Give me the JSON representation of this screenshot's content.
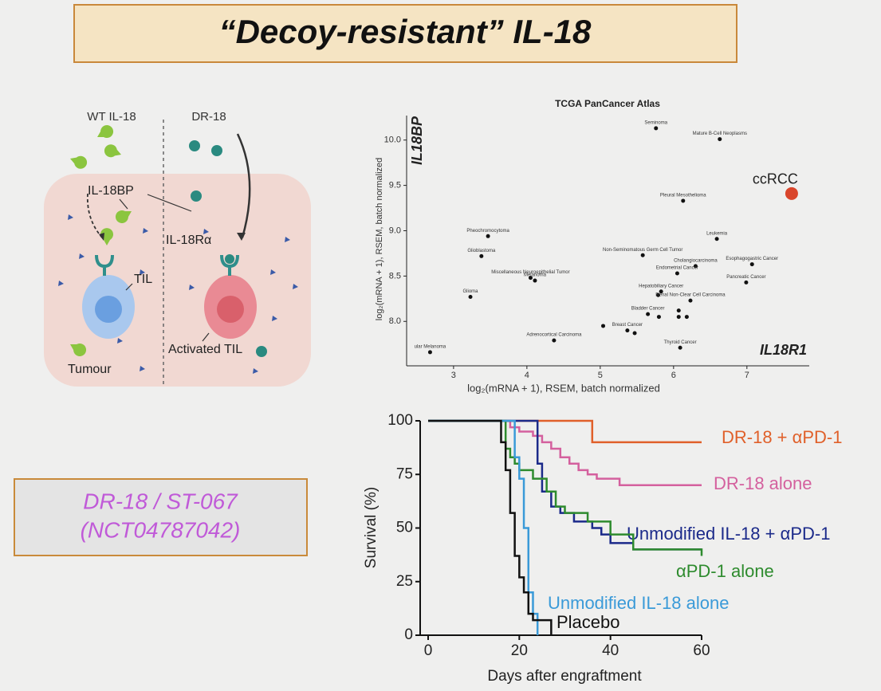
{
  "title": "“Decoy-resistant” IL-18",
  "diagram": {
    "wt_label": "WT IL-18",
    "dr_label": "DR-18",
    "bp_label": "IL-18BP",
    "receptor_label": "IL-18Rα",
    "til_label": "TIL",
    "activated_label": "Activated TIL",
    "tumour_label": "Tumour"
  },
  "callout": {
    "lines": [
      "DR-18 / ST-067",
      "(NCT04787042)"
    ]
  },
  "chart_data": [
    {
      "type": "scatter",
      "title": "TCGA PanCancer Atlas",
      "x_label": "log₂(mRNA + 1), RSEM, batch normalized",
      "y_label": "log₂(mRNA + 1), RSEM, batch normalized",
      "annotations": [
        "IL18BP",
        "IL18R1"
      ],
      "color": "#111111",
      "xlim": [
        2.36,
        7.85
      ],
      "ylim": [
        7.51,
        10.27
      ],
      "xticks": [
        3,
        4,
        5,
        6,
        7
      ],
      "yticks": [
        {
          "value": 8,
          "label": "8.0"
        },
        {
          "value": 8.5,
          "label": "8.5"
        },
        {
          "value": 9,
          "label": "9.0"
        },
        {
          "value": 9.5,
          "label": "9.5"
        },
        {
          "value": 10,
          "label": "10.0"
        }
      ],
      "labels": [
        "Seminoma",
        "Mature B-Cell Neoplasms",
        "ccRCC",
        "Pleural Mesothelioma",
        "Leukemia",
        "Pheochromocytoma",
        "Glioblastoma",
        "Non-Seminomatous Germ Cell Tumor",
        "Esophagogastric Cancer",
        "Cholangiocarcinoma",
        "Miscellaneous Neuroepithelial Tumor",
        "Melanoma",
        "Pancreatic Cancer",
        "Endometrial Cancer",
        "Glioma",
        "Hepatobiliary Cancer",
        null,
        "Renal Non-Clear Cell Carcinoma",
        "Bladder Cancer",
        null,
        null,
        null,
        null,
        "Breast Cancer",
        null,
        null,
        "Adrenocortical Carcinoma",
        "Thyroid Cancer",
        "ular Melanoma"
      ],
      "x": [
        5.76,
        6.63,
        7.61,
        6.13,
        6.59,
        3.47,
        3.38,
        5.58,
        7.07,
        6.3,
        4.05,
        4.11,
        6.99,
        6.05,
        3.23,
        5.83,
        5.79,
        6.23,
        5.65,
        5.8,
        6.07,
        6.07,
        6.18,
        5.37,
        5.47,
        5.04,
        4.37,
        6.09,
        2.68
      ],
      "values": [
        10.13,
        10.01,
        9.41,
        9.33,
        8.91,
        8.94,
        8.72,
        8.73,
        8.63,
        8.61,
        8.48,
        8.45,
        8.43,
        8.53,
        8.27,
        8.33,
        8.29,
        8.23,
        8.08,
        8.05,
        8.12,
        8.05,
        8.05,
        7.9,
        7.87,
        7.95,
        7.79,
        7.71,
        7.66
      ],
      "colors": [
        "#111111",
        "#111111",
        "#d9452b",
        "#111111",
        "#111111",
        "#111111",
        "#111111",
        "#111111",
        "#111111",
        "#111111",
        "#111111",
        "#111111",
        "#111111",
        "#111111",
        "#111111",
        "#111111",
        "#111111",
        "#111111",
        "#111111",
        "#111111",
        "#111111",
        "#111111",
        "#111111",
        "#111111",
        "#111111",
        "#111111",
        "#111111",
        "#111111",
        "#111111"
      ]
    },
    {
      "type": "line",
      "step": true,
      "x_label": "Days after engraftment",
      "y_label": "Survival (%)",
      "xlim": [
        0,
        60
      ],
      "ylim": [
        0,
        100
      ],
      "xticks": [
        0,
        20,
        40,
        60
      ],
      "yticks": [
        0,
        25,
        50,
        75,
        100
      ],
      "series": [
        {
          "name": "DR-18 + αPD-1",
          "color": "#e0602a",
          "x": [
            0,
            36,
            60
          ],
          "values": [
            100,
            90,
            90
          ]
        },
        {
          "name": "DR-18 alone",
          "color": "#d4609e",
          "x": [
            0,
            18,
            20,
            23,
            25,
            27,
            29,
            31,
            33,
            35,
            37,
            42,
            60
          ],
          "values": [
            100,
            97,
            95,
            93,
            90,
            87,
            83,
            80,
            77,
            75,
            73,
            70,
            70
          ]
        },
        {
          "name": "Unmodified IL-18 + αPD-1",
          "color": "#1b2a8a",
          "x": [
            0,
            24,
            25,
            27,
            29,
            32,
            36,
            38,
            40,
            45,
            60
          ],
          "values": [
            100,
            80,
            67,
            60,
            57,
            53,
            50,
            47,
            43,
            40,
            40
          ]
        },
        {
          "name": "αPD-1 alone",
          "color": "#2e8b2e",
          "x": [
            0,
            17,
            18,
            19,
            20,
            23,
            26,
            28,
            30,
            35,
            40,
            45,
            60
          ],
          "values": [
            100,
            87,
            83,
            80,
            77,
            73,
            67,
            60,
            57,
            53,
            47,
            40,
            37
          ]
        },
        {
          "name": "Unmodified IL-18 alone",
          "color": "#3a9ad8",
          "x": [
            0,
            19,
            20,
            21,
            22,
            23,
            24
          ],
          "values": [
            100,
            83,
            73,
            50,
            20,
            10,
            0
          ]
        },
        {
          "name": "Placebo",
          "color": "#111111",
          "x": [
            0,
            16,
            17,
            18,
            19,
            20,
            21,
            22,
            23,
            27
          ],
          "values": [
            100,
            90,
            77,
            57,
            37,
            27,
            20,
            10,
            7,
            0
          ]
        }
      ]
    }
  ]
}
